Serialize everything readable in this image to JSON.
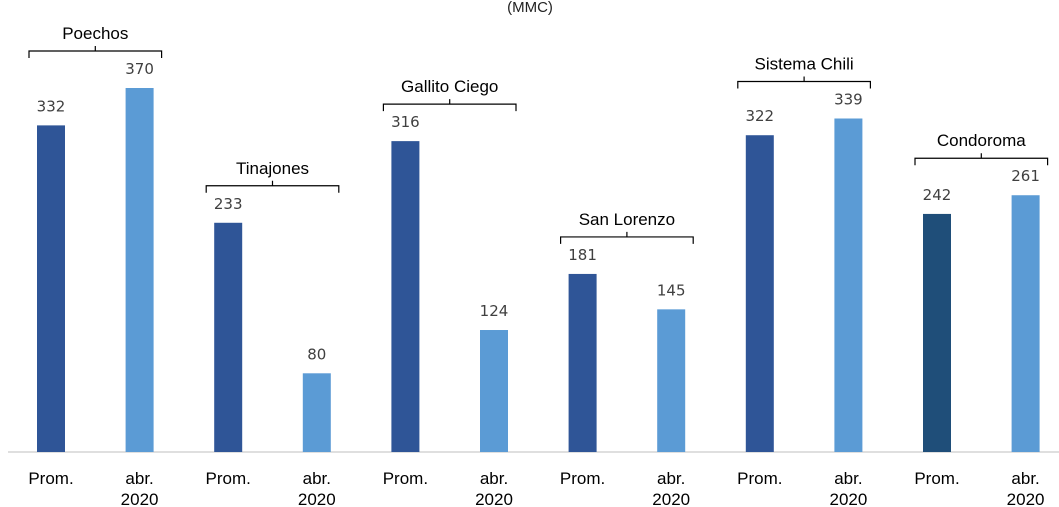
{
  "chart_data": {
    "type": "bar",
    "title": "",
    "unit_label": "(MMC)",
    "xlabel": "",
    "ylabel": "",
    "ylim": [
      0,
      400
    ],
    "grid": false,
    "legend": "none",
    "colors": {
      "prom": "#2F5597",
      "abr": "#5B9BD5",
      "prom_alt": "#1F4E79"
    },
    "groups": [
      {
        "name": "Poechos",
        "values": [
          332,
          370
        ]
      },
      {
        "name": "Tinajones",
        "values": [
          233,
          80
        ]
      },
      {
        "name": "Gallito Ciego",
        "values": [
          316,
          124
        ]
      },
      {
        "name": "San Lorenzo",
        "values": [
          181,
          145
        ]
      },
      {
        "name": "Sistema Chili",
        "values": [
          322,
          339
        ]
      },
      {
        "name": "Condoroma",
        "values": [
          242,
          261
        ]
      }
    ],
    "bar_labels": [
      [
        "Prom."
      ],
      [
        "abr.",
        "2020"
      ]
    ]
  }
}
